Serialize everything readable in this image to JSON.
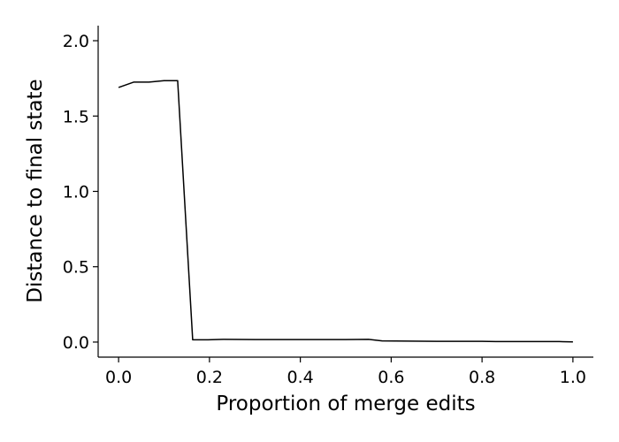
{
  "chart_data": {
    "type": "line",
    "title": "",
    "xlabel": "Proportion of merge edits",
    "ylabel": "Distance to final state",
    "xlim": [
      -0.045,
      1.045
    ],
    "ylim": [
      -0.1,
      2.1
    ],
    "xticks": [
      0.0,
      0.2,
      0.4,
      0.6,
      0.8,
      1.0
    ],
    "xtick_labels": [
      "0.0",
      "0.2",
      "0.4",
      "0.6",
      "0.8",
      "1.0"
    ],
    "yticks": [
      0.0,
      0.5,
      1.0,
      1.5,
      2.0
    ],
    "ytick_labels": [
      "0.0",
      "0.5",
      "1.0",
      "1.5",
      "2.0"
    ],
    "grid": false,
    "legend": "none",
    "line_color": "#000000",
    "series": [
      {
        "x": [
          0.0,
          0.033,
          0.067,
          0.1,
          0.13,
          0.163,
          0.197,
          0.23,
          0.3,
          0.4,
          0.5,
          0.55,
          0.58,
          0.7,
          0.8,
          0.83,
          0.9,
          0.97,
          1.0
        ],
        "y": [
          1.69,
          1.725,
          1.725,
          1.735,
          1.735,
          0.015,
          0.015,
          0.018,
          0.017,
          0.017,
          0.017,
          0.018,
          0.008,
          0.005,
          0.005,
          0.003,
          0.003,
          0.003,
          0.001
        ]
      }
    ]
  }
}
